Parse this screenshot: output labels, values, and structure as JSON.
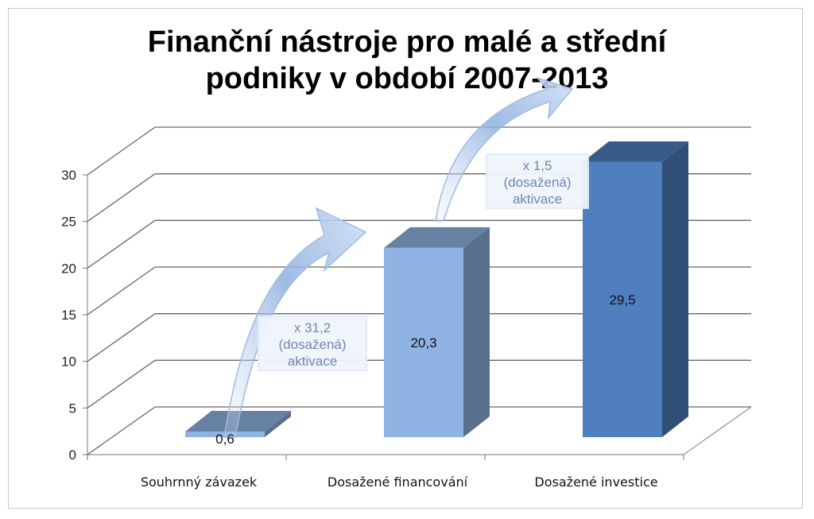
{
  "chart_data": {
    "type": "bar",
    "title_line1": "Finanční nástroje pro malé a střední",
    "title_line2": "podniky v období 2007-2013",
    "categories": [
      "Souhrnný závazek",
      "Dosažené financování",
      "Dosažené investice"
    ],
    "values": [
      0.6,
      20.3,
      29.5
    ],
    "value_labels": [
      "0,6",
      "20,3",
      "29,5"
    ],
    "ylim": [
      0,
      30
    ],
    "yticks": [
      0,
      5,
      10,
      15,
      20,
      25,
      30
    ],
    "grid": true,
    "three_d": true,
    "colors": [
      "#8fb3e3",
      "#8fb3e3",
      "#4f7fbf"
    ],
    "annotations": [
      {
        "lines": [
          "x 31,2",
          "(dosažená)",
          "aktivace"
        ]
      },
      {
        "lines": [
          "x 1,5",
          "(dosažená)",
          "aktivace"
        ]
      }
    ]
  }
}
